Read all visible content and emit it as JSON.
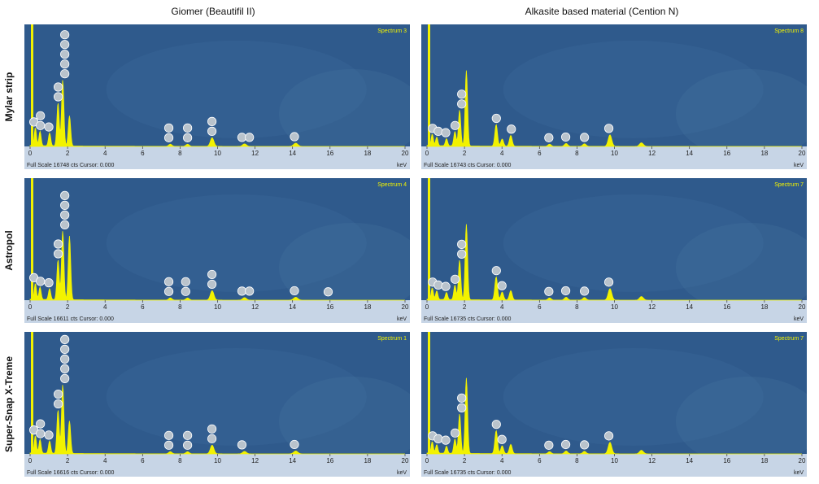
{
  "columns": [
    "Giomer (Beautifil II)",
    "Alkasite based material (Cention N)"
  ],
  "rows": [
    "Mylar strip",
    "Astropol",
    "Super-Snap X-Treme"
  ],
  "colors": {
    "plot_bg": "#2f5a8c",
    "plot_bg_dark": "#234a78",
    "spectrum": "#f2f200",
    "axis_bar": "#c7d5e6",
    "label_fill": "#b9c3cc",
    "label_stroke": "#ffffff"
  },
  "chart_data": [
    {
      "type": "area",
      "column": "Giomer (Beautifil II)",
      "row": "Mylar strip",
      "spectrum_label": "Spectrum 3",
      "footer": "Full Scale 16748 cts Cursor: 0.000",
      "xlabel": "keV",
      "xlim": [
        0,
        20
      ],
      "xticks": [
        0,
        2,
        4,
        6,
        8,
        10,
        12,
        14,
        16,
        18,
        20
      ],
      "ymax": 16748,
      "peaks": [
        [
          0.28,
          2500
        ],
        [
          0.53,
          2000
        ],
        [
          1.04,
          1800
        ],
        [
          1.49,
          6000
        ],
        [
          1.74,
          9200
        ],
        [
          2.1,
          4200
        ],
        [
          7.48,
          300
        ],
        [
          8.4,
          300
        ],
        [
          9.71,
          1200
        ],
        [
          11.44,
          350
        ],
        [
          14.17,
          450
        ]
      ],
      "element_labels": [
        {
          "x": 0.2,
          "n": 1
        },
        {
          "x": 0.55,
          "n": 2
        },
        {
          "x": 1.0,
          "n": 1
        },
        {
          "x": 1.5,
          "n": 2
        },
        {
          "x": 1.85,
          "n": 5
        },
        {
          "x": 7.4,
          "n": 2
        },
        {
          "x": 8.4,
          "n": 2
        },
        {
          "x": 9.7,
          "n": 2
        },
        {
          "x": 11.3,
          "n": 1
        },
        {
          "x": 11.7,
          "n": 1
        },
        {
          "x": 14.1,
          "n": 1
        }
      ]
    },
    {
      "type": "area",
      "column": "Alkasite based material (Cention N)",
      "row": "Mylar strip",
      "spectrum_label": "Spectrum 8",
      "footer": "Full Scale 16743 cts Cursor: 0.000",
      "xlabel": "keV",
      "xlim": [
        0,
        20
      ],
      "xticks": [
        0,
        2,
        4,
        6,
        8,
        10,
        12,
        14,
        16,
        18,
        20
      ],
      "ymax": 16743,
      "peaks": [
        [
          0.28,
          1600
        ],
        [
          0.52,
          1200
        ],
        [
          1.04,
          1000
        ],
        [
          1.49,
          2000
        ],
        [
          1.74,
          5000
        ],
        [
          2.1,
          10500
        ],
        [
          3.69,
          3000
        ],
        [
          4.01,
          1000
        ],
        [
          4.47,
          1500
        ],
        [
          6.54,
          300
        ],
        [
          7.42,
          400
        ],
        [
          8.4,
          350
        ],
        [
          9.76,
          1600
        ],
        [
          11.44,
          500
        ]
      ],
      "element_labels": [
        {
          "x": 0.3,
          "n": 1
        },
        {
          "x": 0.6,
          "n": 1
        },
        {
          "x": 1.0,
          "n": 1
        },
        {
          "x": 1.5,
          "n": 1
        },
        {
          "x": 1.85,
          "n": 2
        },
        {
          "x": 3.7,
          "n": 1
        },
        {
          "x": 4.5,
          "n": 1
        },
        {
          "x": 6.5,
          "n": 1
        },
        {
          "x": 7.4,
          "n": 1
        },
        {
          "x": 8.4,
          "n": 1
        },
        {
          "x": 9.7,
          "n": 1
        }
      ]
    },
    {
      "type": "area",
      "column": "Giomer (Beautifil II)",
      "row": "Astropol",
      "spectrum_label": "Spectrum 4",
      "footer": "Full Scale 16611 cts Cursor: 0.000",
      "xlabel": "keV",
      "xlim": [
        0,
        20
      ],
      "xticks": [
        0,
        2,
        4,
        6,
        8,
        10,
        12,
        14,
        16,
        18,
        20
      ],
      "ymax": 16611,
      "peaks": [
        [
          0.28,
          2200
        ],
        [
          0.53,
          1700
        ],
        [
          1.04,
          1500
        ],
        [
          1.49,
          5500
        ],
        [
          1.74,
          9500
        ],
        [
          2.1,
          8800
        ],
        [
          7.48,
          300
        ],
        [
          8.4,
          300
        ],
        [
          9.71,
          1300
        ],
        [
          11.44,
          350
        ],
        [
          14.17,
          400
        ],
        [
          15.8,
          250
        ]
      ],
      "element_labels": [
        {
          "x": 0.2,
          "n": 1
        },
        {
          "x": 0.55,
          "n": 1
        },
        {
          "x": 1.0,
          "n": 1
        },
        {
          "x": 1.5,
          "n": 2
        },
        {
          "x": 1.85,
          "n": 4
        },
        {
          "x": 7.4,
          "n": 2
        },
        {
          "x": 8.3,
          "n": 2
        },
        {
          "x": 9.7,
          "n": 2
        },
        {
          "x": 11.3,
          "n": 1
        },
        {
          "x": 11.7,
          "n": 1
        },
        {
          "x": 14.1,
          "n": 1
        },
        {
          "x": 15.9,
          "n": 1
        }
      ]
    },
    {
      "type": "area",
      "column": "Alkasite based material (Cention N)",
      "row": "Astropol",
      "spectrum_label": "Spectrum 7",
      "footer": "Full Scale 16735 cts Cursor: 0.000",
      "xlabel": "keV",
      "xlim": [
        0,
        20
      ],
      "xticks": [
        0,
        2,
        4,
        6,
        8,
        10,
        12,
        14,
        16,
        18,
        20
      ],
      "ymax": 16735,
      "peaks": [
        [
          0.28,
          1600
        ],
        [
          0.52,
          1200
        ],
        [
          1.04,
          1000
        ],
        [
          1.49,
          2000
        ],
        [
          1.74,
          5500
        ],
        [
          2.1,
          10500
        ],
        [
          3.69,
          3200
        ],
        [
          4.01,
          1100
        ],
        [
          4.47,
          1300
        ],
        [
          6.54,
          300
        ],
        [
          7.42,
          400
        ],
        [
          8.4,
          350
        ],
        [
          9.76,
          1600
        ],
        [
          11.44,
          500
        ]
      ],
      "element_labels": [
        {
          "x": 0.3,
          "n": 1
        },
        {
          "x": 0.6,
          "n": 1
        },
        {
          "x": 1.0,
          "n": 1
        },
        {
          "x": 1.5,
          "n": 1
        },
        {
          "x": 1.85,
          "n": 2
        },
        {
          "x": 3.7,
          "n": 1
        },
        {
          "x": 4.0,
          "n": 1
        },
        {
          "x": 6.5,
          "n": 1
        },
        {
          "x": 7.4,
          "n": 1
        },
        {
          "x": 8.4,
          "n": 1
        },
        {
          "x": 9.7,
          "n": 1
        }
      ]
    },
    {
      "type": "area",
      "column": "Giomer (Beautifil II)",
      "row": "Super-Snap X-Treme",
      "spectrum_label": "Spectrum 1",
      "footer": "Full Scale 16616 cts Cursor: 0.000",
      "xlabel": "keV",
      "xlim": [
        0,
        20
      ],
      "xticks": [
        0,
        2,
        4,
        6,
        8,
        10,
        12,
        14,
        16,
        18,
        20
      ],
      "ymax": 16616,
      "peaks": [
        [
          0.28,
          2400
        ],
        [
          0.53,
          1900
        ],
        [
          1.04,
          1700
        ],
        [
          1.49,
          6000
        ],
        [
          1.74,
          9500
        ],
        [
          2.1,
          4500
        ],
        [
          7.48,
          300
        ],
        [
          8.4,
          300
        ],
        [
          9.71,
          1200
        ],
        [
          11.44,
          350
        ],
        [
          14.17,
          400
        ]
      ],
      "element_labels": [
        {
          "x": 0.2,
          "n": 1
        },
        {
          "x": 0.55,
          "n": 2
        },
        {
          "x": 1.0,
          "n": 1
        },
        {
          "x": 1.5,
          "n": 2
        },
        {
          "x": 1.85,
          "n": 5
        },
        {
          "x": 7.4,
          "n": 2
        },
        {
          "x": 8.4,
          "n": 2
        },
        {
          "x": 9.7,
          "n": 2
        },
        {
          "x": 11.3,
          "n": 1
        },
        {
          "x": 14.1,
          "n": 1
        }
      ]
    },
    {
      "type": "area",
      "column": "Alkasite based material (Cention N)",
      "row": "Super-Snap X-Treme",
      "spectrum_label": "Spectrum 7",
      "footer": "Full Scale 16735 cts Cursor: 0.000",
      "xlabel": "keV",
      "xlim": [
        0,
        20
      ],
      "xticks": [
        0,
        2,
        4,
        6,
        8,
        10,
        12,
        14,
        16,
        18,
        20
      ],
      "ymax": 16735,
      "peaks": [
        [
          0.28,
          1600
        ],
        [
          0.52,
          1200
        ],
        [
          1.04,
          1000
        ],
        [
          1.49,
          2000
        ],
        [
          1.74,
          5500
        ],
        [
          2.1,
          10500
        ],
        [
          3.69,
          3200
        ],
        [
          4.01,
          1100
        ],
        [
          4.47,
          1300
        ],
        [
          6.54,
          300
        ],
        [
          7.42,
          400
        ],
        [
          8.4,
          350
        ],
        [
          9.76,
          1600
        ],
        [
          11.44,
          500
        ]
      ],
      "element_labels": [
        {
          "x": 0.3,
          "n": 1
        },
        {
          "x": 0.6,
          "n": 1
        },
        {
          "x": 1.0,
          "n": 1
        },
        {
          "x": 1.5,
          "n": 1
        },
        {
          "x": 1.85,
          "n": 2
        },
        {
          "x": 3.7,
          "n": 1
        },
        {
          "x": 4.0,
          "n": 1
        },
        {
          "x": 6.5,
          "n": 1
        },
        {
          "x": 7.4,
          "n": 1
        },
        {
          "x": 8.4,
          "n": 1
        },
        {
          "x": 9.7,
          "n": 1
        }
      ]
    }
  ]
}
